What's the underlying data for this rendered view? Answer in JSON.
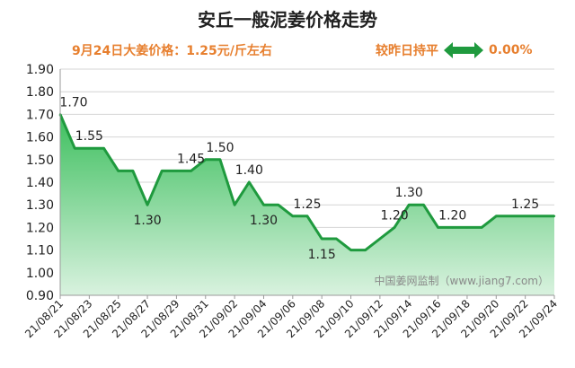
{
  "chart_data": {
    "type": "area",
    "title": "安丘一般泥姜价格走势",
    "subtitle": "9月24日大姜价格：1.25元/斤左右",
    "change_label": "较昨日持平",
    "change_value": "0.00%",
    "watermark": "中国姜网监制（www.jiang7.com）",
    "ylim": [
      0.9,
      1.9
    ],
    "yticks": [
      "0.90",
      "1.00",
      "1.10",
      "1.20",
      "1.30",
      "1.40",
      "1.50",
      "1.60",
      "1.70",
      "1.80",
      "1.90"
    ],
    "xtick_labels": [
      "21/08/21",
      "21/08/23",
      "21/08/25",
      "21/08/27",
      "21/08/29",
      "21/08/31",
      "21/09/02",
      "21/09/04",
      "21/09/06",
      "21/09/08",
      "21/09/10",
      "21/09/12",
      "21/09/14",
      "21/09/16",
      "21/09/18",
      "21/09/20",
      "21/09/22",
      "21/09/24"
    ],
    "values": [
      1.7,
      1.55,
      1.55,
      1.55,
      1.45,
      1.45,
      1.3,
      1.45,
      1.45,
      1.45,
      1.5,
      1.5,
      1.3,
      1.4,
      1.3,
      1.3,
      1.25,
      1.25,
      1.15,
      1.15,
      1.1,
      1.1,
      1.15,
      1.2,
      1.3,
      1.3,
      1.2,
      1.2,
      1.2,
      1.2,
      1.25,
      1.25,
      1.25,
      1.25,
      1.25
    ],
    "data_labels": [
      {
        "index": 0,
        "text": "1.70",
        "pos": "above"
      },
      {
        "index": 2,
        "text": "1.55",
        "pos": "above"
      },
      {
        "index": 6,
        "text": "1.30",
        "pos": "below"
      },
      {
        "index": 9,
        "text": "1.45",
        "pos": "above"
      },
      {
        "index": 11,
        "text": "1.50",
        "pos": "above"
      },
      {
        "index": 13,
        "text": "1.40",
        "pos": "above"
      },
      {
        "index": 14,
        "text": "1.30",
        "pos": "below"
      },
      {
        "index": 17,
        "text": "1.25",
        "pos": "above"
      },
      {
        "index": 18,
        "text": "1.15",
        "pos": "below"
      },
      {
        "index": 23,
        "text": "1.20",
        "pos": "above"
      },
      {
        "index": 24,
        "text": "1.30",
        "pos": "above"
      },
      {
        "index": 27,
        "text": "1.20",
        "pos": "above"
      },
      {
        "index": 32,
        "text": "1.25",
        "pos": "above"
      }
    ],
    "colors": {
      "line": "#1f9a3e",
      "fill_top": "#3dbf5e",
      "fill_bottom": "#d9f2df",
      "arrow": "#1f9a3e",
      "accent": "#e77f2e"
    }
  }
}
